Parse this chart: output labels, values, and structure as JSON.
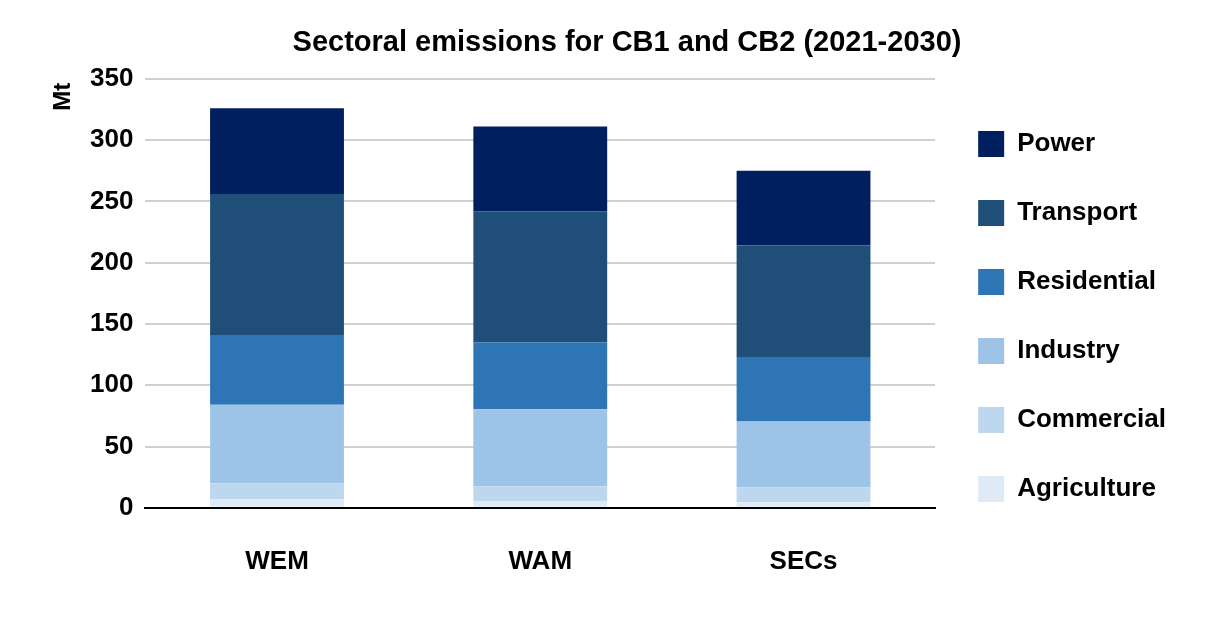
{
  "chart_data": {
    "type": "bar",
    "title": "Sectoral emissions for CB1 and CB2 (2021-2030)",
    "ylabel": "Mt",
    "categories": [
      "WEM",
      "WAM",
      "SECs"
    ],
    "stacked": true,
    "ylim": [
      0,
      350
    ],
    "yticks": [
      0,
      50,
      100,
      150,
      200,
      250,
      300,
      350
    ],
    "grid": "y",
    "legend": "right",
    "series": [
      {
        "name": "Agriculture",
        "color": "#deebf7",
        "values": [
          7,
          5.5,
          4.5
        ]
      },
      {
        "name": "Commercial",
        "color": "#bdd7ee",
        "values": [
          13,
          12,
          12
        ]
      },
      {
        "name": "Industry",
        "color": "#9dc3e6",
        "values": [
          64,
          63,
          54
        ]
      },
      {
        "name": "Residential",
        "color": "#2e75b6",
        "values": [
          57,
          54.5,
          52.5
        ]
      },
      {
        "name": "Transport",
        "color": "#1f4e79",
        "values": [
          115,
          107,
          91
        ]
      },
      {
        "name": "Power",
        "color": "#001f5f",
        "values": [
          70,
          69,
          61
        ]
      }
    ]
  }
}
